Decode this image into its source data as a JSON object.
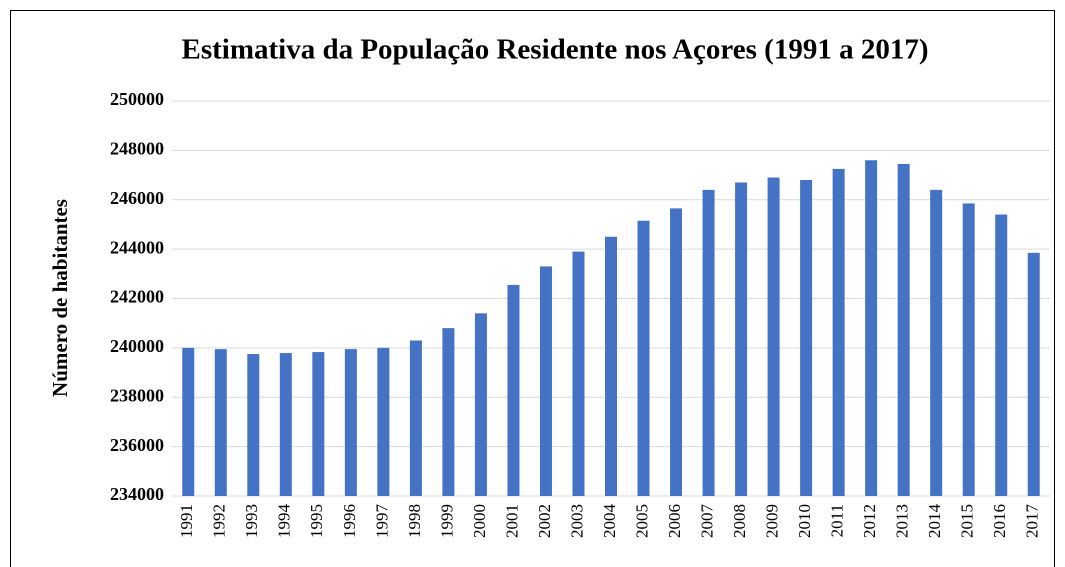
{
  "chart_data": {
    "type": "bar",
    "title": "Estimativa da População Residente nos Açores (1991 a 2017)",
    "y_label": "Número de habitantes",
    "categories": [
      "1991",
      "1992",
      "1993",
      "1994",
      "1995",
      "1996",
      "1997",
      "1998",
      "1999",
      "2000",
      "2001",
      "2002",
      "2003",
      "2004",
      "2005",
      "2006",
      "2007",
      "2008",
      "2009",
      "2010",
      "2011",
      "2012",
      "2013",
      "2014",
      "2015",
      "2016",
      "2017"
    ],
    "values": [
      240000,
      239950,
      239750,
      239790,
      239830,
      239950,
      240000,
      240300,
      240800,
      241400,
      242550,
      243300,
      243900,
      244500,
      245150,
      245650,
      246400,
      246700,
      246900,
      246800,
      247250,
      247600,
      247450,
      246400,
      245850,
      245400,
      243850
    ],
    "color": "#4472c4",
    "ylim": [
      234000,
      250000
    ],
    "yticks": [
      234000,
      236000,
      238000,
      240000,
      242000,
      244000,
      246000,
      248000,
      250000
    ],
    "grid": true
  }
}
